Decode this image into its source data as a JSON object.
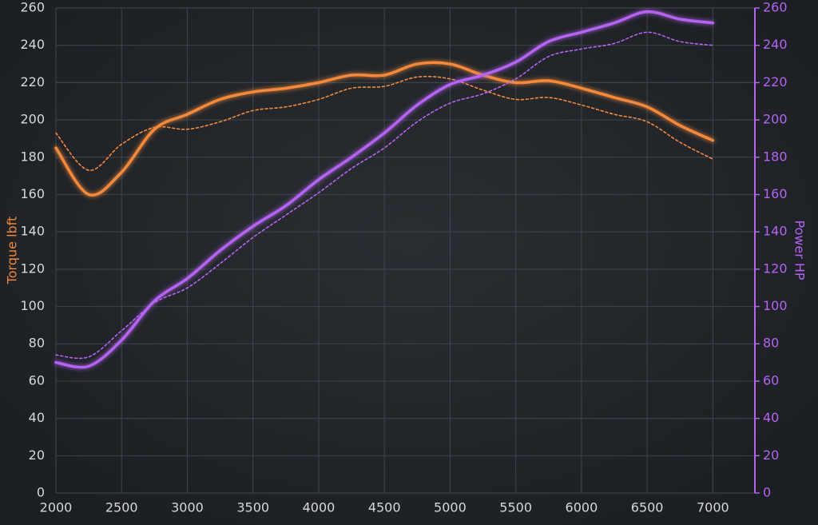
{
  "chart_data": {
    "type": "line",
    "ylabel": "Torque lbft",
    "y2label": "Power HP",
    "x": [
      2000,
      2250,
      2500,
      2750,
      3000,
      3250,
      3500,
      3750,
      4000,
      4250,
      4500,
      4750,
      5000,
      5250,
      5500,
      5750,
      6000,
      6250,
      6500,
      6750,
      7000
    ],
    "series": [
      {
        "color": "#f5893a",
        "style": "solid",
        "values": [
          185,
          160,
          172,
          195,
          203,
          211,
          215,
          217,
          220,
          224,
          224,
          230,
          230,
          224,
          220,
          221,
          217,
          212,
          207,
          197,
          189
        ]
      },
      {
        "color": "#f5893a",
        "style": "dashed",
        "values": [
          193,
          173,
          187,
          196,
          195,
          199,
          205,
          207,
          211,
          217,
          218,
          223,
          222,
          216,
          211,
          212,
          208,
          203,
          199,
          188,
          179
        ]
      },
      {
        "color": "#b463f2",
        "style": "solid",
        "axis": "y2",
        "values": [
          70,
          68,
          82,
          103,
          115,
          130,
          143,
          154,
          168,
          180,
          193,
          208,
          219,
          224,
          231,
          242,
          247,
          252,
          258,
          254,
          252
        ]
      },
      {
        "color": "#b463f2",
        "style": "dashed",
        "axis": "y2",
        "values": [
          74,
          73,
          87,
          102,
          110,
          123,
          137,
          149,
          161,
          174,
          185,
          199,
          209,
          214,
          222,
          234,
          238,
          241,
          247,
          242,
          240
        ]
      }
    ],
    "xlim": [
      2000,
      7320
    ],
    "xticks": [
      2000,
      2500,
      3000,
      3500,
      4000,
      4500,
      5000,
      5500,
      6000,
      6500,
      7000
    ],
    "ylim": [
      0,
      260
    ],
    "yticks": [
      0,
      20,
      40,
      60,
      80,
      100,
      120,
      140,
      160,
      180,
      200,
      220,
      240,
      260
    ],
    "y2lim": [
      0,
      260
    ],
    "y2ticks": [
      0,
      20,
      40,
      60,
      80,
      100,
      120,
      140,
      160,
      180,
      200,
      220,
      240,
      260
    ],
    "grid": true,
    "ylabel_color": "#f5893a",
    "y2label_color": "#b463f2"
  }
}
